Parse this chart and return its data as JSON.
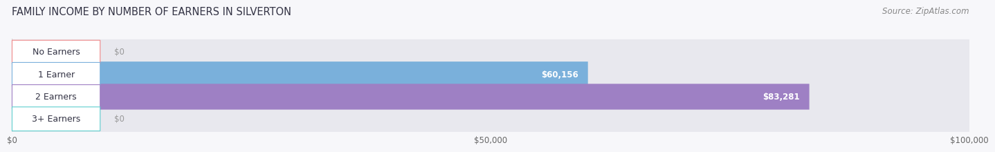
{
  "title": "FAMILY INCOME BY NUMBER OF EARNERS IN SILVERTON",
  "source": "Source: ZipAtlas.com",
  "categories": [
    "No Earners",
    "1 Earner",
    "2 Earners",
    "3+ Earners"
  ],
  "values": [
    0,
    60156,
    83281,
    0
  ],
  "bar_colors": [
    "#f08888",
    "#7ab0db",
    "#9e80c4",
    "#5ecece"
  ],
  "bar_track_color": "#e8e8ee",
  "xlim": [
    0,
    100000
  ],
  "xticks": [
    0,
    50000,
    100000
  ],
  "xtick_labels": [
    "$0",
    "$50,000",
    "$100,000"
  ],
  "value_labels": [
    "$0",
    "$60,156",
    "$83,281",
    "$0"
  ],
  "fig_bg_color": "#f7f7fa",
  "bar_height": 0.58,
  "title_fontsize": 10.5,
  "label_fontsize": 9,
  "value_fontsize": 8.5,
  "source_fontsize": 8.5
}
